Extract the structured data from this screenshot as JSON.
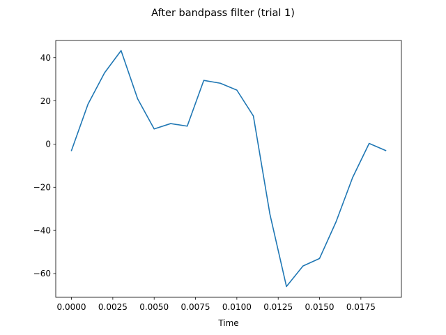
{
  "chart_data": {
    "type": "line",
    "title": "After bandpass filter (trial 1)",
    "xlabel": "Time",
    "ylabel": "",
    "xlim": [
      -0.00095,
      0.01995
    ],
    "ylim": [
      -71.0,
      48.0
    ],
    "x_ticks": [
      0.0,
      0.0025,
      0.005,
      0.0075,
      0.01,
      0.0125,
      0.015,
      0.0175
    ],
    "x_tick_labels": [
      "0.0000",
      "0.0025",
      "0.0050",
      "0.0075",
      "0.0100",
      "0.0125",
      "0.0150",
      "0.0175"
    ],
    "y_ticks": [
      40,
      20,
      0,
      -20,
      -40,
      -60
    ],
    "y_tick_labels": [
      "40",
      "20",
      "0",
      "−20",
      "−40",
      "−60"
    ],
    "grid": false,
    "legend": "none",
    "series": [
      {
        "color": "#1f77b4",
        "x": [
          0.0,
          0.001,
          0.002,
          0.003,
          0.004,
          0.005,
          0.006,
          0.007,
          0.008,
          0.009,
          0.01,
          0.011,
          0.012,
          0.013,
          0.014,
          0.015,
          0.016,
          0.017,
          0.018,
          0.019
        ],
        "y": [
          -3.0,
          18.5,
          33.0,
          43.3,
          21.0,
          7.0,
          9.5,
          8.3,
          29.5,
          28.2,
          25.0,
          13.0,
          -32.5,
          -66.0,
          -56.5,
          -53.0,
          -36.0,
          -15.5,
          0.3,
          -3.0
        ]
      }
    ]
  }
}
